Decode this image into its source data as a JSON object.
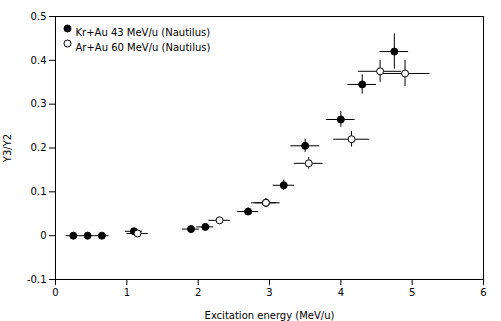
{
  "chart_data": {
    "type": "scatter",
    "xlabel": "Excitation energy (MeV/u)",
    "ylabel": "Y3/Y2",
    "xlim": [
      0,
      6
    ],
    "ylim": [
      -0.1,
      0.5
    ],
    "xticks": [
      0,
      1,
      2,
      3,
      4,
      5,
      6
    ],
    "yticks": [
      -0.1,
      0,
      0.1,
      0.2,
      0.3,
      0.4,
      0.5
    ],
    "legend": "upper left",
    "series": [
      {
        "name": "Kr+Au 43 MeV/u (Nautilus)",
        "color": "#000000",
        "marker": "circle",
        "x": [
          0.25,
          0.45,
          0.65,
          1.1,
          1.9,
          2.1,
          2.7,
          2.95,
          3.2,
          3.5,
          4.0,
          4.3,
          4.75
        ],
        "values": [
          0.0,
          0.0,
          0.0,
          0.01,
          0.015,
          0.02,
          0.055,
          0.075,
          0.115,
          0.205,
          0.265,
          0.345,
          0.42
        ],
        "xerr": [
          0.1,
          0.1,
          0.1,
          0.12,
          0.12,
          0.12,
          0.15,
          0.15,
          0.15,
          0.2,
          0.2,
          0.2,
          0.2
        ],
        "yerr": [
          0.003,
          0.003,
          0.003,
          0.005,
          0.005,
          0.007,
          0.008,
          0.009,
          0.012,
          0.015,
          0.018,
          0.022,
          0.04
        ]
      },
      {
        "name": "Ar+Au 60 MeV/u (Nautilus)",
        "color": "#000000",
        "marker": "open_circle",
        "x": [
          1.15,
          2.3,
          2.95,
          3.55,
          4.15,
          4.55,
          4.9
        ],
        "values": [
          0.005,
          0.035,
          0.075,
          0.165,
          0.22,
          0.375,
          0.37
        ],
        "xerr": [
          0.15,
          0.15,
          0.2,
          0.2,
          0.25,
          0.3,
          0.35
        ],
        "yerr": [
          0.004,
          0.007,
          0.009,
          0.013,
          0.018,
          0.025,
          0.03
        ]
      }
    ]
  }
}
